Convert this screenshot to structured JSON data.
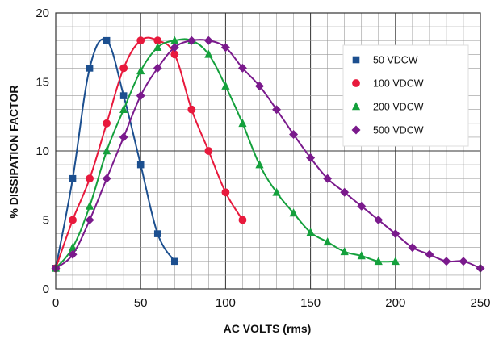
{
  "chart_data": {
    "type": "line",
    "title": "",
    "xlabel": "AC VOLTS (rms)",
    "ylabel": "% DISSIPATION FACTOR",
    "xlim": [
      0,
      250
    ],
    "ylim": [
      0,
      20
    ],
    "x_ticks": [
      0,
      50,
      100,
      150,
      200,
      250
    ],
    "y_ticks": [
      0,
      5,
      10,
      15,
      20
    ],
    "x_tick_labels": [
      "0",
      "50",
      "100",
      "150",
      "200",
      "250"
    ],
    "y_tick_labels": [
      "0",
      "5",
      "10",
      "15",
      "20"
    ],
    "grid": true,
    "legend_position": "top-right",
    "series": [
      {
        "name": "50 VDCW",
        "color": "#1c4f8f",
        "marker": "square",
        "x": [
          0,
          10,
          20,
          30,
          40,
          50,
          60,
          70
        ],
        "y": [
          1.5,
          8,
          16,
          18,
          14,
          9,
          4,
          2
        ]
      },
      {
        "name": "100 VDCW",
        "color": "#e8193c",
        "marker": "circle",
        "x": [
          0,
          10,
          20,
          30,
          40,
          50,
          60,
          70,
          80,
          90,
          100,
          110
        ],
        "y": [
          1.5,
          5,
          8,
          12,
          16,
          18,
          18,
          17,
          13,
          10,
          7,
          5
        ]
      },
      {
        "name": "200 VDCW",
        "color": "#14a03c",
        "marker": "triangle",
        "x": [
          0,
          10,
          20,
          30,
          40,
          50,
          60,
          70,
          80,
          90,
          100,
          110,
          120,
          130,
          140,
          150,
          160,
          170,
          180,
          190,
          200
        ],
        "y": [
          1.5,
          3,
          6,
          10,
          13,
          15.8,
          17.5,
          18,
          18,
          17,
          14.7,
          12,
          9,
          7,
          5.5,
          4.1,
          3.4,
          2.7,
          2.4,
          2,
          2
        ]
      },
      {
        "name": "500 VDCW",
        "color": "#7a1a8c",
        "marker": "diamond",
        "x": [
          0,
          10,
          20,
          30,
          40,
          50,
          60,
          70,
          80,
          90,
          100,
          110,
          120,
          130,
          140,
          150,
          160,
          170,
          180,
          190,
          200,
          210,
          220,
          230,
          240,
          250
        ],
        "y": [
          1.5,
          2.5,
          5,
          8,
          11,
          14,
          16,
          17.5,
          18,
          18,
          17.5,
          16,
          14.7,
          13,
          11.2,
          9.5,
          8,
          7,
          6,
          5,
          4,
          3,
          2.5,
          2,
          2,
          1.5
        ]
      }
    ]
  }
}
